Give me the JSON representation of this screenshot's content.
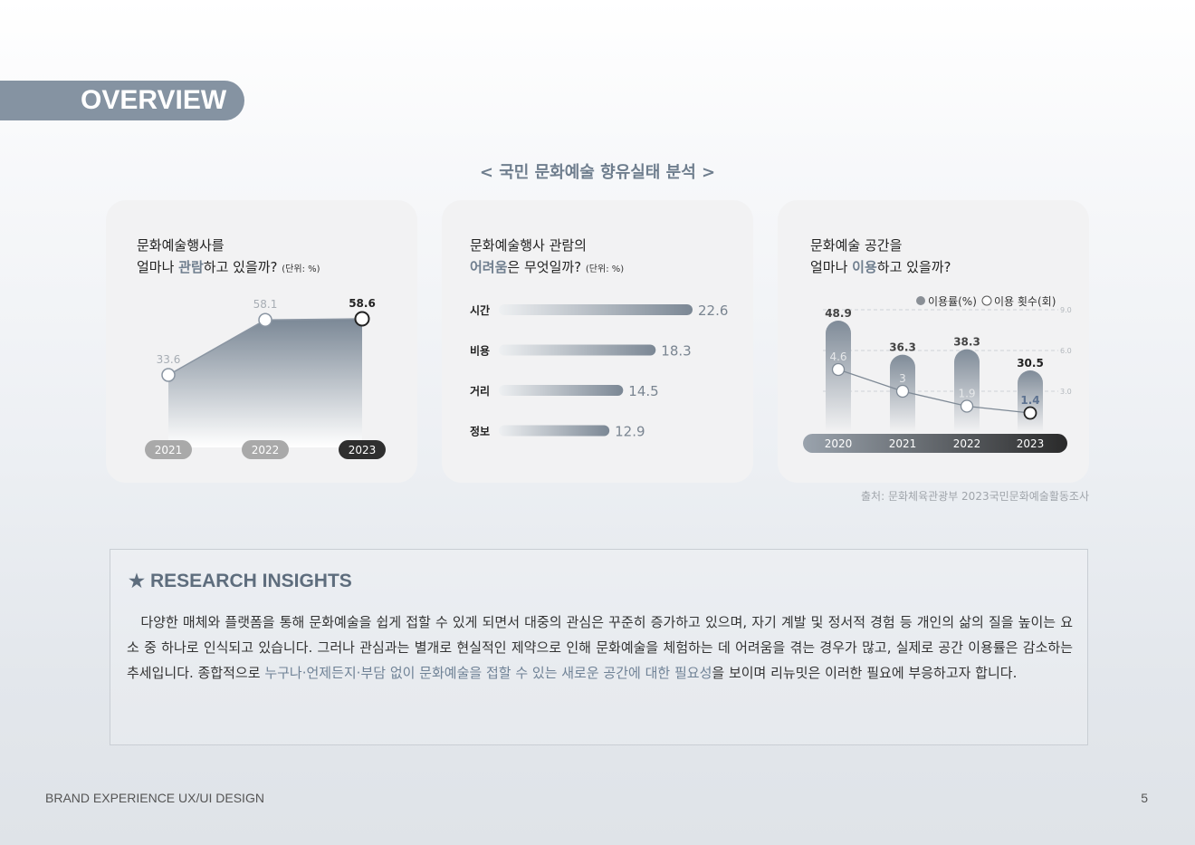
{
  "header": {
    "tab_label": "OVERVIEW"
  },
  "section": {
    "title": "< 국민 문화예술 향유실태 분석 >"
  },
  "card1": {
    "title_line1": "문화예술행사를",
    "title_line2_pre": "얼마나 ",
    "title_line2_hl": "관람",
    "title_line2_post": "하고 있을까? ",
    "unit": "(단위: %)"
  },
  "card2": {
    "title_line1": "문화예술행사 관람의",
    "title_line2_hl": "어려움",
    "title_line2_post": "은 무엇일까? ",
    "unit": "(단위: %)"
  },
  "card3": {
    "title_line1": "문화예술 공간을",
    "title_line2_pre": "얼마나 ",
    "title_line2_hl": "이용",
    "title_line2_post": "하고 있을까?"
  },
  "source": "출처: 문화체육관광부 2023국민문화예술활동조사",
  "insights": {
    "star": "★",
    "title": "RESEARCH INSIGHTS",
    "body_pre": "다양한 매체와 플랫폼을 통해 문화예술을 쉽게 접할 수 있게 되면서 대중의 관심은 꾸준히 증가하고 있으며, 자기 계발 및 정서적 경험 등 개인의 삶의 질을 높이는 요소 중 하나로 인식되고 있습니다. 그러나 관심과는 별개로 현실적인 제약으로 인해 문화예술을 체험하는 데 어려움을 겪는 경우가 많고, 실제로 공간 이용률은 감소하는 추세입니다. 종합적으로 ",
    "body_hl": "누구나·언제든지·부담 없이 문화예술을 접할 수 있는 새로운 공간에 대한 필요성",
    "body_post": "을 보이며 리뉴밋은 이러한 필요에 부응하고자 합니다."
  },
  "footer": {
    "left": "BRAND EXPERIENCE UX/UI DESIGN",
    "page": "5"
  },
  "colors": {
    "accent": "#6f7e8e",
    "tab_bg": "#8593a2",
    "dark": "#333333"
  },
  "chart_data": [
    {
      "type": "area",
      "categories": [
        "2021",
        "2022",
        "2023"
      ],
      "values": [
        33.6,
        58.1,
        58.6
      ],
      "highlight": "2023"
    },
    {
      "type": "bar",
      "orientation": "horizontal",
      "categories": [
        "시간",
        "비용",
        "거리",
        "정보"
      ],
      "values": [
        22.6,
        18.3,
        14.5,
        12.9
      ]
    },
    {
      "type": "bar+line",
      "categories": [
        "2020",
        "2021",
        "2022",
        "2023"
      ],
      "series": [
        {
          "name": "이용률(%)",
          "type": "bar",
          "values": [
            48.9,
            36.3,
            38.3,
            30.5
          ]
        },
        {
          "name": "이용 횟수(회)",
          "type": "line",
          "values": [
            4.6,
            3.0,
            1.9,
            1.4
          ]
        }
      ],
      "right_axis_ticks": [
        "9.0",
        "6.0",
        "3.0"
      ],
      "right_axis_range": [
        0,
        9
      ],
      "legend": "top-right"
    }
  ]
}
